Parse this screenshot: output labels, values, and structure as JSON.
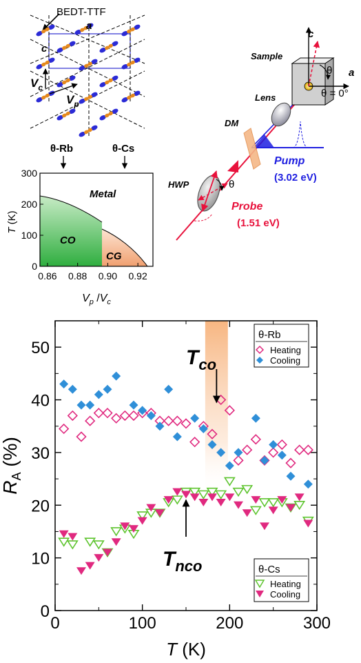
{
  "crystal": {
    "molecule_label": "BEDT-TTF",
    "axis_a": "a",
    "axis_c": "c",
    "vc_main": "V",
    "vc_sub": "c",
    "vp_main": "V",
    "vp_sub": "p"
  },
  "phase": {
    "marker_rb": "θ-Rb",
    "marker_cs": "θ-Cs",
    "ylabel_main": "T",
    "ylabel_unit": " (K)",
    "xlabel_vp": "V",
    "xlabel_p": "p",
    "xlabel_sep": " /",
    "xlabel_vc": "V",
    "xlabel_c": "c",
    "region_metal": "Metal",
    "region_co": "CO",
    "region_cg": "CG",
    "yticks": [
      "0",
      "100",
      "200",
      "300"
    ],
    "xticks": [
      "0.86",
      "0.88",
      "0.90",
      "0.92"
    ],
    "colors": {
      "co": "#3db54a",
      "cg": "#f4b08a"
    }
  },
  "setup": {
    "sample": "Sample",
    "lens": "Lens",
    "dm": "DM",
    "hwp": "HWP",
    "pump": "Pump",
    "pump_energy": "(3.02 eV)",
    "probe": "Probe",
    "probe_energy": "(1.51 eV)",
    "axis_c": "c",
    "axis_a": "a",
    "theta": "θ",
    "theta_zero": "θ = 0°",
    "colors": {
      "pump": "#1f1fe0",
      "probe": "#e8123c"
    }
  },
  "chart_data": {
    "type": "scatter",
    "xlabel": "T (K)",
    "ylabel": "R_A (%)",
    "xlim": [
      0,
      300
    ],
    "ylim": [
      0,
      55
    ],
    "xticks": [
      "0",
      "100",
      "200",
      "300"
    ],
    "yticks": [
      "0",
      "10",
      "20",
      "30",
      "40",
      "50"
    ],
    "annotations": {
      "tco": {
        "main": "T",
        "sub": "co",
        "x": 185
      },
      "tnco": {
        "main": "T",
        "sub": "nco",
        "x": 150
      }
    },
    "legends": [
      {
        "title": "θ-Rb",
        "entries": [
          "Heating",
          "Cooling"
        ]
      },
      {
        "title": "θ-Cs",
        "entries": [
          "Heating",
          "Cooling"
        ]
      }
    ],
    "series": [
      {
        "name": "Heating",
        "group": "θ-Rb",
        "marker": "diamond-open",
        "color": "#e0297f",
        "x": [
          10,
          20,
          30,
          40,
          50,
          60,
          70,
          80,
          90,
          100,
          110,
          120,
          130,
          140,
          150,
          160,
          170,
          180,
          190,
          200,
          210,
          220,
          230,
          240,
          250,
          260,
          270,
          280,
          290
        ],
        "y": [
          34.5,
          37,
          33,
          36,
          37.5,
          37.5,
          36.5,
          37,
          37,
          37.5,
          37.5,
          36,
          36,
          36,
          35.5,
          32,
          35,
          33.5,
          40,
          38,
          28.5,
          30.5,
          32.5,
          28.5,
          30,
          31.5,
          28,
          30.5,
          30.5
        ]
      },
      {
        "name": "Cooling",
        "group": "θ-Rb",
        "marker": "diamond-filled",
        "color": "#2f8fd8",
        "x": [
          10,
          20,
          30,
          40,
          50,
          60,
          70,
          90,
          100,
          110,
          120,
          130,
          140,
          160,
          170,
          180,
          190,
          200,
          210,
          230,
          240,
          250,
          260,
          270,
          290
        ],
        "y": [
          43,
          42,
          39,
          39,
          41,
          42,
          44.5,
          39,
          38,
          37,
          35,
          42,
          33,
          36.5,
          34.5,
          31.5,
          30,
          27.5,
          30,
          36.5,
          28.5,
          31.5,
          29.5,
          25.5,
          24
        ]
      },
      {
        "name": "Heating",
        "group": "θ-Cs",
        "marker": "triangle-down-open",
        "color": "#5ec42f",
        "x": [
          10,
          20,
          40,
          50,
          60,
          70,
          80,
          90,
          100,
          110,
          120,
          130,
          140,
          150,
          160,
          170,
          180,
          190,
          200,
          210,
          220,
          230,
          240,
          250,
          260,
          270,
          280,
          290
        ],
        "y": [
          13,
          12.5,
          13,
          12.5,
          11,
          15,
          15.5,
          14.5,
          18,
          18.5,
          18.5,
          20.5,
          21,
          22.5,
          22.5,
          22,
          22.5,
          22,
          24.5,
          22.5,
          23,
          19,
          20.5,
          20.5,
          20.5,
          19.5,
          20,
          17
        ]
      },
      {
        "name": "Cooling",
        "group": "θ-Cs",
        "marker": "triangle-down-filled",
        "color": "#e0297f",
        "x": [
          10,
          20,
          30,
          40,
          50,
          60,
          70,
          80,
          90,
          100,
          110,
          120,
          130,
          140,
          150,
          160,
          170,
          180,
          190,
          200,
          210,
          220,
          230,
          240,
          250,
          260,
          270,
          280,
          290
        ],
        "y": [
          14.5,
          14,
          7.5,
          8.5,
          10,
          11,
          13,
          16,
          15.5,
          17,
          19.5,
          18.5,
          21,
          22.5,
          22,
          21.5,
          20.5,
          21.5,
          20.5,
          21.5,
          20,
          18.5,
          21,
          16,
          19,
          21,
          19.5,
          21.5,
          16.5
        ]
      }
    ]
  }
}
